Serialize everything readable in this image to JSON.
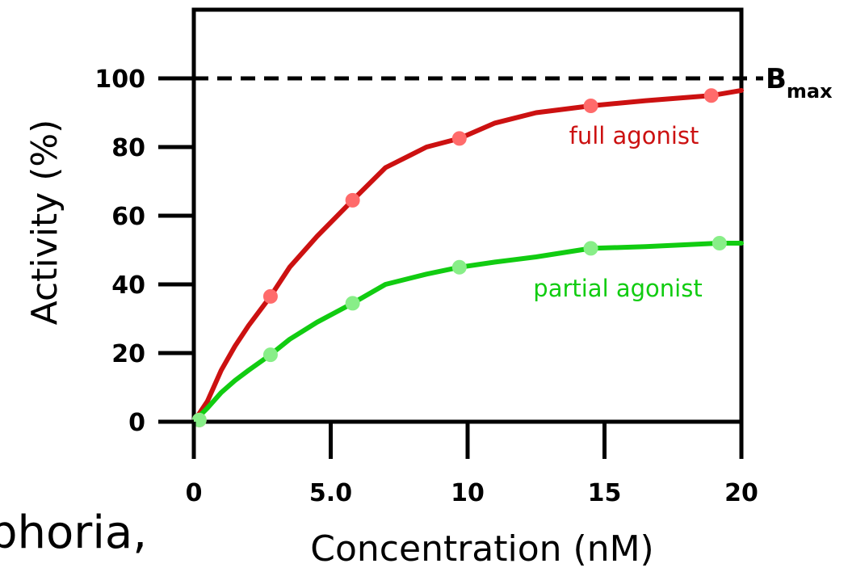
{
  "chart_data": {
    "type": "line",
    "xlabel": "Concentration (nM)",
    "ylabel": "Activity (%)",
    "xlim": [
      0,
      20
    ],
    "ylim": [
      0,
      100
    ],
    "x_ticks": [
      "0",
      "5.0",
      "10",
      "15",
      "20"
    ],
    "y_ticks": [
      "0",
      "20",
      "40",
      "60",
      "80",
      "100"
    ],
    "x_tick_values": [
      0,
      5,
      10,
      15,
      20
    ],
    "y_tick_values": [
      0,
      20,
      40,
      60,
      80,
      100
    ],
    "grid": false,
    "reference_line": {
      "y": 100,
      "style": "dashed",
      "label": "B",
      "label_sub": "max"
    },
    "series": [
      {
        "name": "full agonist",
        "color": "#cc1111",
        "marker_color": "#ff6b6b",
        "points": [
          [
            0.2,
            0.5
          ],
          [
            2.8,
            36.5
          ],
          [
            5.8,
            64.5
          ],
          [
            9.7,
            82.5
          ],
          [
            14.5,
            92
          ],
          [
            18.9,
            95
          ]
        ],
        "curve": [
          [
            0,
            0
          ],
          [
            0.5,
            6
          ],
          [
            1,
            15
          ],
          [
            1.5,
            22
          ],
          [
            2,
            28
          ],
          [
            2.8,
            36.5
          ],
          [
            3.5,
            45
          ],
          [
            4.5,
            54
          ],
          [
            5.8,
            64.5
          ],
          [
            7,
            74
          ],
          [
            8.5,
            80
          ],
          [
            9.7,
            82.5
          ],
          [
            11,
            87
          ],
          [
            12.5,
            90
          ],
          [
            14.5,
            92
          ],
          [
            16.5,
            93.5
          ],
          [
            18.9,
            95
          ],
          [
            20,
            96.5
          ]
        ]
      },
      {
        "name": "partial agonist",
        "color": "#11cc11",
        "marker_color": "#88ee88",
        "points": [
          [
            0.2,
            0.5
          ],
          [
            2.8,
            19.5
          ],
          [
            5.8,
            34.5
          ],
          [
            9.7,
            45
          ],
          [
            14.5,
            50.5
          ],
          [
            19.2,
            52
          ]
        ],
        "curve": [
          [
            0,
            0
          ],
          [
            0.5,
            4
          ],
          [
            1,
            8.5
          ],
          [
            1.5,
            12
          ],
          [
            2,
            15
          ],
          [
            2.8,
            19.5
          ],
          [
            3.5,
            24
          ],
          [
            4.5,
            29
          ],
          [
            5.8,
            34.5
          ],
          [
            7,
            40
          ],
          [
            8.5,
            43
          ],
          [
            9.7,
            45
          ],
          [
            11,
            46.5
          ],
          [
            12.5,
            48
          ],
          [
            14.5,
            50.5
          ],
          [
            16.5,
            51
          ],
          [
            19.2,
            52
          ],
          [
            20,
            52
          ]
        ]
      }
    ]
  },
  "overflow_text": "phoria,"
}
